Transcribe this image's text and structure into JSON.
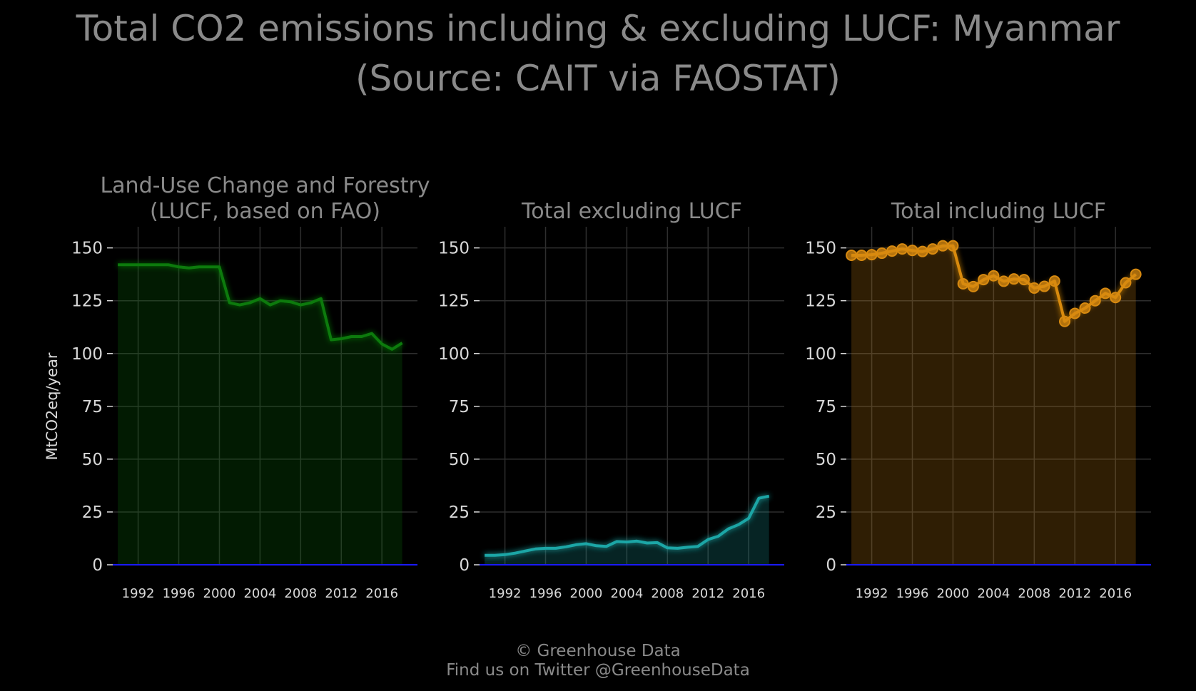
{
  "title": "Total CO2 emissions including & excluding LUCF: Myanmar",
  "subtitle": "(Source: CAIT via FAOSTAT)",
  "footer": {
    "line1": "© Greenhouse Data",
    "line2": "Find us on Twitter @GreenhouseData"
  },
  "colors": {
    "background": "#000000",
    "grid": "#2e2e2e",
    "text_title": "#8a8a8a",
    "text_ticks": "#d8d8d8",
    "zero_line": "#1a1aff",
    "lucf": "#0b7a0b",
    "excl": "#1aa6a6",
    "incl": "#d88a10"
  },
  "chart_data": [
    {
      "type": "area",
      "title": "Land-Use Change and Forestry\n(LUCF, based on FAO)",
      "ylabel": "MtCO2eq/year",
      "ylim": [
        0,
        160
      ],
      "yticks": [
        0,
        25,
        50,
        75,
        100,
        125,
        150
      ],
      "xticks": [
        1992,
        1996,
        2000,
        2004,
        2008,
        2012,
        2016
      ],
      "color": "lucf",
      "markers": false,
      "x": [
        1990,
        1991,
        1992,
        1993,
        1994,
        1995,
        1996,
        1997,
        1998,
        1999,
        2000,
        2001,
        2002,
        2003,
        2004,
        2005,
        2006,
        2007,
        2008,
        2009,
        2010,
        2011,
        2012,
        2013,
        2014,
        2015,
        2016,
        2017,
        2018
      ],
      "values": [
        142,
        142,
        142,
        142,
        142,
        142,
        141,
        140.5,
        141,
        141,
        141,
        124,
        123,
        124,
        126,
        123,
        125,
        124.5,
        123,
        124,
        126,
        106.5,
        107,
        108,
        108,
        109.5,
        104.5,
        102,
        105
      ]
    },
    {
      "type": "area",
      "title": "Total excluding LUCF",
      "ylabel": "",
      "ylim": [
        0,
        160
      ],
      "yticks": [
        0,
        25,
        50,
        75,
        100,
        125,
        150
      ],
      "xticks": [
        1992,
        1996,
        2000,
        2004,
        2008,
        2012,
        2016
      ],
      "color": "excl",
      "markers": false,
      "x": [
        1990,
        1991,
        1992,
        1993,
        1994,
        1995,
        1996,
        1997,
        1998,
        1999,
        2000,
        2001,
        2002,
        2003,
        2004,
        2005,
        2006,
        2007,
        2008,
        2009,
        2010,
        2011,
        2012,
        2013,
        2014,
        2015,
        2016,
        2017,
        2018
      ],
      "values": [
        4.5,
        4.5,
        4.8,
        5.5,
        6.5,
        7.5,
        7.8,
        7.8,
        8.5,
        9.5,
        10,
        9,
        8.7,
        11,
        10.8,
        11.2,
        10.3,
        10.5,
        8,
        7.8,
        8.3,
        8.7,
        12,
        13.5,
        17,
        19,
        22,
        31.5,
        32.5
      ]
    },
    {
      "type": "area",
      "title": "Total including LUCF",
      "ylabel": "",
      "ylim": [
        0,
        160
      ],
      "yticks": [
        0,
        25,
        50,
        75,
        100,
        125,
        150
      ],
      "xticks": [
        1992,
        1996,
        2000,
        2004,
        2008,
        2012,
        2016
      ],
      "color": "incl",
      "markers": true,
      "x": [
        1990,
        1991,
        1992,
        1993,
        1994,
        1995,
        1996,
        1997,
        1998,
        1999,
        2000,
        2001,
        2002,
        2003,
        2004,
        2005,
        2006,
        2007,
        2008,
        2009,
        2010,
        2011,
        2012,
        2013,
        2014,
        2015,
        2016,
        2017,
        2018
      ],
      "values": [
        146.5,
        146.5,
        146.8,
        147.5,
        148.5,
        149.5,
        148.8,
        148.3,
        149.5,
        151,
        151,
        133,
        131.7,
        135,
        136.8,
        134.2,
        135.3,
        135,
        131,
        131.8,
        134.3,
        115.2,
        119,
        121.5,
        125,
        128.5,
        126.5,
        133.5,
        137.5
      ]
    }
  ]
}
